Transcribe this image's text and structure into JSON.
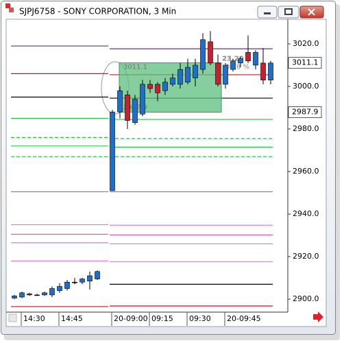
{
  "chart_data": {
    "type": "candlestick",
    "title": "SJPJ6758 - SONY CORPORATION, 3 Min",
    "categories": [
      null,
      "14:30",
      null,
      null,
      null,
      null,
      "14:45",
      null,
      null,
      null,
      null,
      null,
      null,
      "20-09:00",
      null,
      null,
      null,
      null,
      "09:15",
      null,
      null,
      null,
      null,
      "09:30",
      null,
      null,
      null,
      null,
      "20-09:45",
      null,
      null,
      null,
      null,
      null,
      null
    ],
    "open": [
      2900.5,
      2901,
      2902.5,
      2902,
      2902,
      2902,
      2904,
      2905,
      2908,
      2908,
      2908.5,
      2909.5,
      null,
      2951,
      2988,
      2996,
      2983,
      2987,
      3001,
      3001,
      2998,
      3001,
      3001,
      3002,
      3004,
      3008,
      3021,
      3011,
      3001,
      3008,
      3011,
      3016,
      3010,
      3011,
      3003
    ],
    "high": [
      2902,
      2903.5,
      2903,
      2902.5,
      2903.5,
      2906,
      2907.5,
      2909,
      2910,
      2910,
      2913,
      2913.5,
      null,
      2989,
      3000,
      2998,
      2996,
      3003,
      3003,
      3002,
      3004,
      3006,
      3011,
      3013,
      3013,
      3025,
      3026,
      3015,
      3011,
      3013,
      3014,
      3024,
      3017,
      3018,
      3012
    ],
    "low": [
      2900,
      2900.5,
      2901.5,
      2901.5,
      2901.5,
      2901,
      2903,
      2904,
      2907,
      2907,
      2904.5,
      2909,
      null,
      2951,
      2985,
      2980,
      2982,
      2986,
      2997,
      2993,
      2996,
      3000,
      2999,
      3001,
      3000,
      3006,
      3010,
      3000,
      2999,
      3007,
      3009,
      3011,
      3008,
      3001,
      3001
    ],
    "close": [
      2901.5,
      2903,
      2902,
      2902,
      2903,
      2905,
      2906,
      2908,
      2908,
      2909.5,
      2911,
      2913,
      null,
      2988,
      2998,
      2984,
      2994,
      3001,
      2999,
      2997,
      3002,
      3004,
      3008,
      3009,
      3010,
      3022,
      3011,
      3001,
      3010,
      3012,
      3013,
      3012,
      3016,
      3003,
      3011
    ],
    "up_color": "#1f6fc9",
    "down_color": "#c9202f",
    "unchanged_color": "#000000",
    "ylim": [
      2893.9,
      3031.6
    ],
    "yticks": [
      {
        "value": 2900,
        "label": "2900.0"
      },
      {
        "value": 2920,
        "label": "2920.0"
      },
      {
        "value": 2940,
        "label": "2940.0"
      },
      {
        "value": 2960,
        "label": "2960.0"
      },
      {
        "value": 2980,
        "label": "2980.0"
      },
      {
        "value": 3000,
        "label": "3000.0"
      },
      {
        "value": 3020,
        "label": "3020.0"
      }
    ],
    "price_labels": [
      3011.1,
      2987.9
    ],
    "levels": [
      {
        "color": "#6a2c84",
        "values": [
          3019,
          3017.7
        ]
      },
      {
        "color": "#b0202a",
        "values": [
          3006,
          3005.5
        ]
      },
      {
        "color": "#000000",
        "values": [
          2995,
          2994.5
        ]
      },
      {
        "color": "#2db84a",
        "values": [
          2985,
          2984.5
        ]
      },
      {
        "color": "#2db84a",
        "values": [
          2976,
          2975.5
        ],
        "dashed": true
      },
      {
        "color": "#22d040",
        "values": [
          2972,
          2971.5
        ]
      },
      {
        "color": "#2db84a",
        "values": [
          2967,
          2967
        ],
        "dashed": true
      },
      {
        "color": "#888888",
        "values": [
          2950.5,
          2950.5
        ]
      },
      {
        "color": "#e070d0",
        "values": [
          2935,
          2934.8
        ]
      },
      {
        "color": "#e05aa0",
        "values": [
          2930.5,
          2930.2
        ]
      },
      {
        "color": "#d080c0",
        "values": [
          2926.5,
          2926
        ]
      },
      {
        "color": "#f07ae0",
        "values": [
          2918,
          2917.6
        ]
      },
      {
        "color": "#000000",
        "values": [
          null,
          2907
        ]
      },
      {
        "color": "#c01020",
        "values": [
          2896.5,
          2896.8
        ]
      }
    ],
    "measure": {
      "top": 3011.1,
      "bottom": 2987.9,
      "color": "#5cbf7f",
      "labels": [
        "3011.1",
        "2987.9",
        "23.20",
        "0.78 %"
      ]
    }
  }
}
